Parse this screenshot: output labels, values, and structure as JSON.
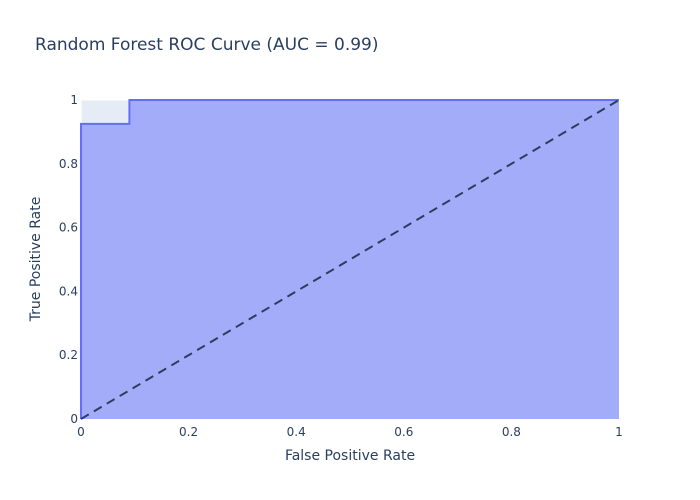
{
  "chart_data": {
    "type": "area",
    "title": "Random Forest ROC Curve (AUC = 0.99)",
    "xlabel": "False Positive Rate",
    "ylabel": "True Positive Rate",
    "xlim": [
      0,
      1
    ],
    "ylim": [
      0,
      1
    ],
    "x_ticks": [
      "0",
      "0.2",
      "0.4",
      "0.6",
      "0.8",
      "1"
    ],
    "y_ticks": [
      "0",
      "0.2",
      "0.4",
      "0.6",
      "0.8",
      "1"
    ],
    "grid": true,
    "legend": "none",
    "series": [
      {
        "kind": "roc-curve-filled",
        "x": [
          0,
          0,
          0.09,
          0.09,
          1
        ],
        "y": [
          0,
          0.925,
          0.925,
          1,
          1
        ]
      },
      {
        "kind": "chance-line-dashed",
        "x": [
          0,
          1
        ],
        "y": [
          0,
          1
        ]
      }
    ],
    "colors": {
      "plot_background": "#e5ecf6",
      "grid": "#ffffff",
      "fill": "#a3acf9",
      "curve": "#636efa",
      "diagonal": "#2a3f5f",
      "text": "#2a3f5f"
    }
  }
}
